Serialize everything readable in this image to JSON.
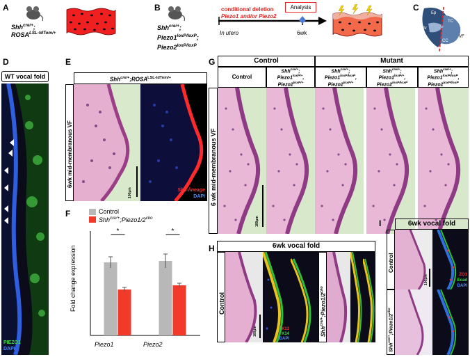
{
  "panels": {
    "A": {
      "letter": "A",
      "genotype_line1": "Shh",
      "genotype_sup1": "cre/+",
      "genotype_sep1": ";",
      "genotype_line2": "ROSA",
      "genotype_sup2": "LSL-tdTom/+"
    },
    "B": {
      "letter": "B",
      "genotype_l1": "Shh",
      "genotype_s1": "cre/+",
      "genotype_sep1": ";",
      "genotype_l2": "Piezo1",
      "genotype_s2": "loxP/loxP",
      "genotype_sep2": ";",
      "genotype_l3": "Piezo2",
      "genotype_s3": "loxP/loxP",
      "deletion_line1": "conditional deletion",
      "deletion_line2": "Piezo1 and/or Piezo2",
      "analysis": "Analysis",
      "in_utero": "In utero",
      "six_wk": "6wk"
    },
    "C": {
      "letter": "C",
      "labels": [
        "Ep",
        "TC",
        "Ar",
        "VF",
        "CC"
      ]
    },
    "D": {
      "letter": "D",
      "title": "WT vocal fold",
      "legend1": "PIEZO1",
      "legend2": "DAPI"
    },
    "E": {
      "letter": "E",
      "header_a": "Shh",
      "header_sup_a": "cre/+",
      "header_b": ";ROSA",
      "header_sup_b": "LSL-tdTom/+",
      "side_label": "6wk mid-membranous VF",
      "scale": "100µm",
      "legend1": "Shh-lineage",
      "legend2": "DAPI"
    },
    "G": {
      "letter": "G",
      "group_control": "Control",
      "group_mutant": "Mutant",
      "row_label": "6 wk mid-membranous VF",
      "scale": "100µm",
      "columns": [
        {
          "name": "Control"
        },
        {
          "l1": "Shh",
          "s1": "cre/+",
          "t1": ";",
          "l2": "Piezo1",
          "s2": "loxP/+",
          "t2": ",",
          "l3": "Piezo2",
          "s3": "loxP/+"
        },
        {
          "l1": "Shh",
          "s1": "cre/+",
          "t1": ";",
          "l2": "Piezo1",
          "s2": "loxP/loxP",
          "t2": ",",
          "l3": "Piezo2",
          "s3": "loxP/+"
        },
        {
          "l1": "Shh",
          "s1": "cre/+",
          "t1": ";",
          "l2": "Piezo1",
          "s2": "loxP/+",
          "t2": ",",
          "l3": "Piezo2",
          "s3": "loxP/loxP"
        },
        {
          "l1": "Shh",
          "s1": "cre/+",
          "t1": ";",
          "l2": "Piezo1",
          "s2": "loxP/loxP",
          "t2": ",",
          "l3": "Piezo2",
          "s3": "loxP/loxP"
        }
      ]
    },
    "F": {
      "letter": "F",
      "legend_control": "Control",
      "legend_mutant_a": "Shh",
      "legend_mutant_sup_a": "cre/+",
      "legend_mutant_b": ";Piezo1/2",
      "legend_mutant_sup_b": "cko",
      "ylabel": "Fold change expression",
      "sig1": "*",
      "sig2": "*",
      "colors": {
        "control": "#b8b8b8",
        "mutant": "#f23a2a"
      }
    },
    "H": {
      "letter": "H",
      "title": "6wk vocal fold",
      "row_control": "Control",
      "row_mut_a": "Shh",
      "row_mut_sup_a": "cre/+",
      "row_mut_b": ";Piezo1/2",
      "row_mut_sup_b": "cko",
      "scale": "100µm",
      "legend1": "K13",
      "legend2": "K14",
      "legend3": "DAPI"
    },
    "I": {
      "letter": "I",
      "title": "6wk vocal fold",
      "row_control": "Control",
      "row_mut_a": "Shh",
      "row_mut_sup_a": "cre/+",
      "row_mut_b": ";Piezo1/2",
      "row_mut_sup_b": "cko",
      "scale": "100µm",
      "legend1": "ZO1",
      "legend2": "Ecad",
      "legend3": "DAPI"
    }
  },
  "chart_data": {
    "type": "bar",
    "categories": [
      "Piezo1",
      "Piezo2"
    ],
    "series": [
      {
        "name": "Control",
        "values": [
          1.05,
          1.07
        ]
      },
      {
        "name": "Shh cre/+;Piezo1/2 cko",
        "values": [
          0.66,
          0.72
        ]
      }
    ],
    "errors": [
      [
        0.08,
        0.1
      ],
      [
        0.03,
        0.03
      ]
    ],
    "ylabel": "Fold change expression",
    "ylim": [
      0,
      1.5
    ],
    "annotations": [
      "*",
      "*"
    ]
  }
}
